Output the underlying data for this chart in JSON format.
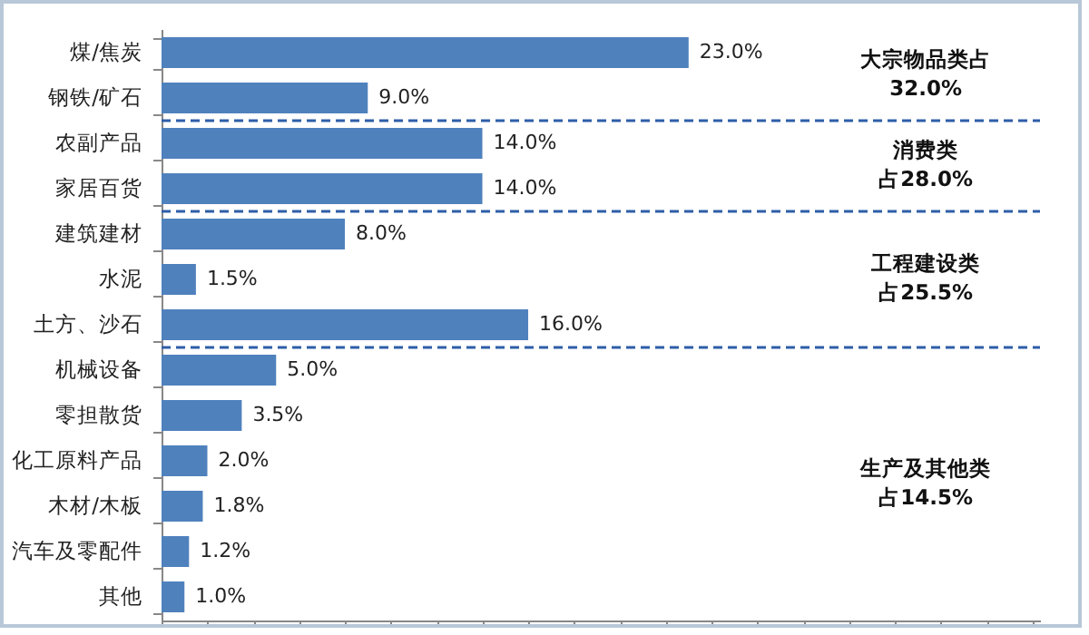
{
  "chart_data": {
    "type": "bar",
    "orientation": "horizontal",
    "categories": [
      "煤/焦炭",
      "钢铁/矿石",
      "农副产品",
      "家居百货",
      "建筑建材",
      "水泥",
      "土方、沙石",
      "机械设备",
      "零担散货",
      "化工原料产品",
      "木材/木板",
      "汽车及零配件",
      "其他"
    ],
    "values": [
      23.0,
      9.0,
      14.0,
      14.0,
      8.0,
      1.5,
      16.0,
      5.0,
      3.5,
      2.0,
      1.8,
      1.2,
      1.0
    ],
    "value_labels": [
      "23.0%",
      "9.0%",
      "14.0%",
      "14.0%",
      "8.0%",
      "1.5%",
      "16.0%",
      "5.0%",
      "3.5%",
      "2.0%",
      "1.8%",
      "1.2%",
      "1.0%"
    ],
    "color": "#4f81bd",
    "annotations": [
      "大宗物品类占",
      "32.0%",
      "消费类",
      "占28.0%",
      "工程建设类",
      "占25.5%",
      "生产及其他类",
      "占14.5%"
    ],
    "ref_lines": [
      {
        "axis": "y",
        "value": "钢铁/矿石",
        "line_style": "dashed",
        "color": "#2e5ea8"
      },
      {
        "axis": "y",
        "value": "家居百货",
        "line_style": "dashed",
        "color": "#2e5ea8"
      },
      {
        "axis": "y",
        "value": "土方、沙石",
        "line_style": "dashed",
        "color": "#2e5ea8"
      }
    ]
  }
}
